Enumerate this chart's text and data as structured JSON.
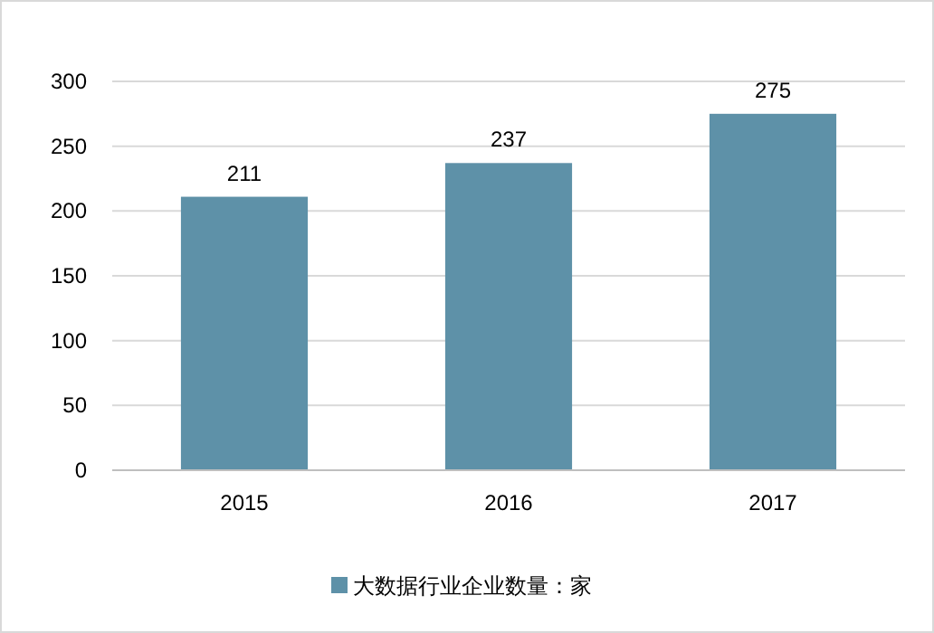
{
  "chart_data": {
    "type": "bar",
    "categories": [
      "2015",
      "2016",
      "2017"
    ],
    "series": [
      {
        "name": "大数据行业企业数量：家",
        "color": "#5e91a8",
        "values": [
          211,
          237,
          275
        ]
      }
    ],
    "ylim": [
      0,
      300
    ],
    "yticks": [
      0,
      50,
      100,
      150,
      200,
      250,
      300
    ],
    "grid": "y",
    "legend": "bottom",
    "data_labels": true
  }
}
